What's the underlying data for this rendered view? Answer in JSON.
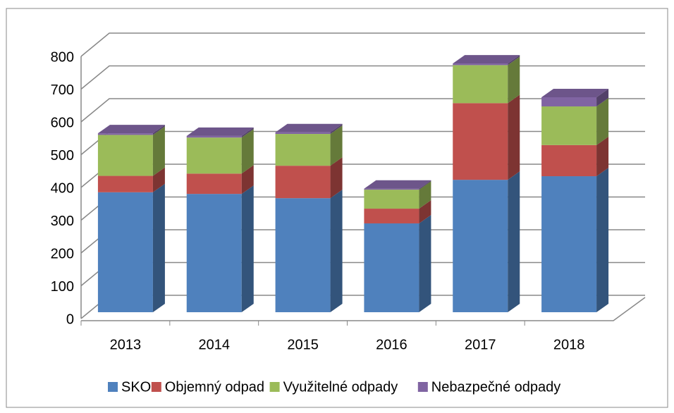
{
  "chart_data": {
    "type": "bar3d_stacked",
    "categories": [
      "2013",
      "2014",
      "2015",
      "2016",
      "2017",
      "2018"
    ],
    "series": [
      {
        "name": "SKO",
        "color": "#4f81bd",
        "values": [
          366,
          361,
          348,
          271,
          404,
          415
        ]
      },
      {
        "name": "Objemný odpad",
        "color": "#c0504d",
        "values": [
          50,
          62,
          99,
          45,
          234,
          95
        ]
      },
      {
        "name": "Využitelné odpady",
        "color": "#9bbb59",
        "values": [
          125,
          110,
          97,
          58,
          116,
          118
        ]
      },
      {
        "name": "Nebazpečné odpady",
        "color": "#8064a2",
        "values": [
          5,
          5,
          5,
          3,
          5,
          28
        ]
      }
    ],
    "ylim": [
      0,
      800
    ],
    "yticks": [
      0,
      100,
      200,
      300,
      400,
      500,
      600,
      700,
      800
    ],
    "grid": true,
    "legend": "bottom"
  }
}
